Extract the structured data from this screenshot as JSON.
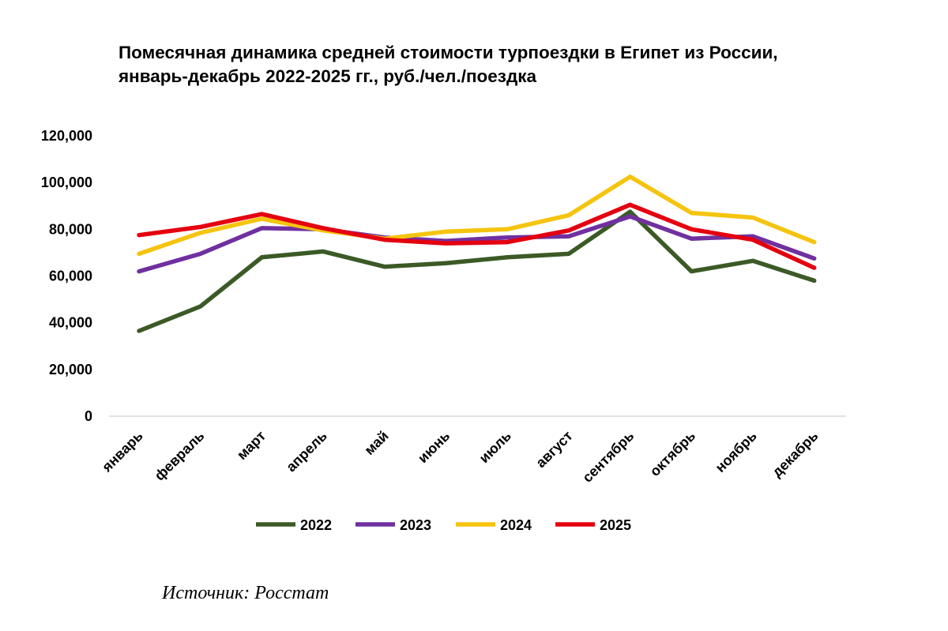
{
  "chart_data": {
    "type": "line",
    "title": "Помесячная динамика средней стоимости турпоездки в Египет из России,",
    "subtitle": "январь-декабрь 2022-2025 гг., руб./чел./поездка",
    "categories": [
      "январь",
      "февраль",
      "март",
      "апрель",
      "май",
      "июнь",
      "июль",
      "август",
      "сентябрь",
      "октябрь",
      "ноябрь",
      "декабрь"
    ],
    "ylim": [
      0,
      120000
    ],
    "yticks": [
      0,
      20000,
      40000,
      60000,
      80000,
      100000,
      120000
    ],
    "ytick_labels": [
      "0",
      "20,000",
      "40,000",
      "60,000",
      "80,000",
      "100,000",
      "120,000"
    ],
    "grid": false,
    "legend_position": "bottom",
    "series": [
      {
        "name": "2022",
        "color": "#3b5a26",
        "values": [
          36500,
          47000,
          68000,
          70500,
          64000,
          65500,
          68000,
          69500,
          87500,
          62000,
          66500,
          58000
        ]
      },
      {
        "name": "2023",
        "color": "#7030a0",
        "values": [
          62000,
          69500,
          80500,
          80000,
          76500,
          75000,
          76500,
          77000,
          85500,
          76000,
          77000,
          67500
        ]
      },
      {
        "name": "2024",
        "color": "#f5c40f",
        "values": [
          69500,
          78500,
          84500,
          79500,
          76000,
          79000,
          80000,
          86000,
          102500,
          87000,
          85000,
          74500
        ]
      },
      {
        "name": "2025",
        "color": "#e4000f",
        "values": [
          77500,
          81000,
          86500,
          80500,
          75500,
          74000,
          74500,
          79500,
          90500,
          80000,
          75500,
          63500
        ]
      }
    ]
  },
  "source": "Источник: Росстат"
}
